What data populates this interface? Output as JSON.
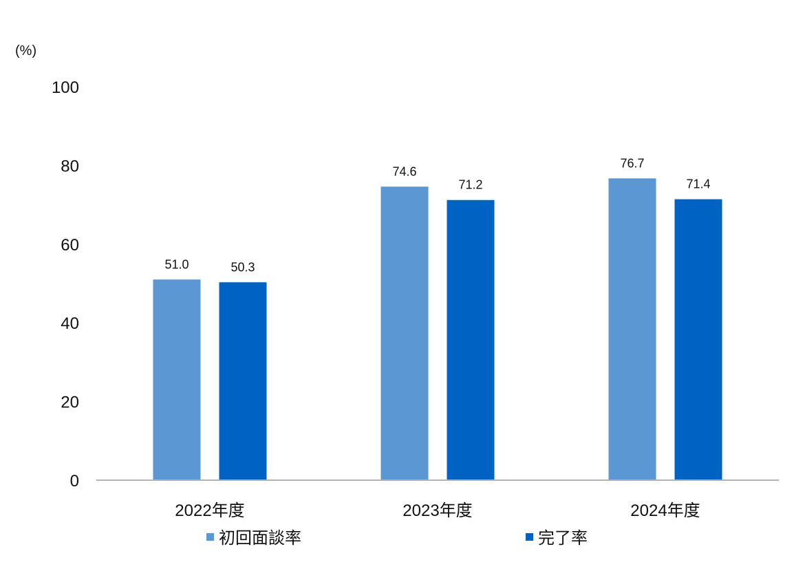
{
  "chart_data": {
    "type": "bar",
    "unit_label": "(%)",
    "categories": [
      "2022年度",
      "2023年度",
      "2024年度"
    ],
    "series": [
      {
        "name": "初回面談率",
        "color": "#5b97d2",
        "values": [
          51.0,
          74.6,
          76.7
        ],
        "labels": [
          "51.0",
          "74.6",
          "76.7"
        ]
      },
      {
        "name": "完了率",
        "color": "#0063c3",
        "values": [
          50.3,
          71.2,
          71.4
        ],
        "labels": [
          "50.3",
          "71.2",
          "71.4"
        ]
      }
    ],
    "yticks": [
      "0",
      "20",
      "40",
      "60",
      "80",
      "100"
    ],
    "ylim": [
      0,
      100
    ],
    "grid": false,
    "legend_position": "bottom"
  }
}
